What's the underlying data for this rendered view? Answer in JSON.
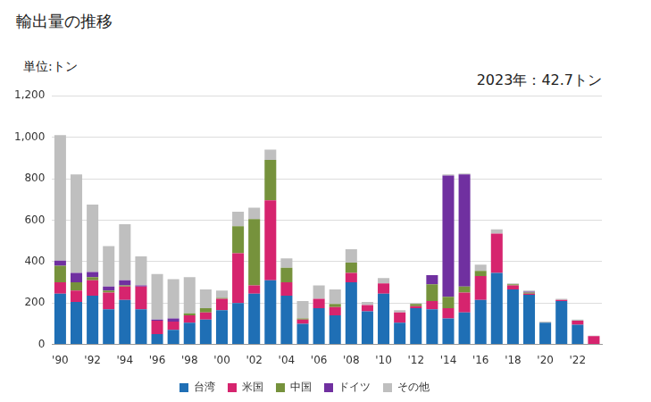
{
  "chart_data": {
    "type": "bar",
    "title": "輸出量の推移",
    "y_label": "単位:トン",
    "annotation": "2023年：42.7トン",
    "categories": [
      "'90",
      null,
      "'92",
      null,
      "'94",
      null,
      "'96",
      null,
      "'98",
      null,
      "'00",
      null,
      "'02",
      null,
      "'04",
      null,
      "'06",
      null,
      "'08",
      null,
      "'10",
      null,
      "'12",
      null,
      "'14",
      null,
      "'16",
      null,
      "'18",
      null,
      "'20",
      null,
      "'22",
      null
    ],
    "series": [
      {
        "name": "台湾",
        "color": "#1f6fb5",
        "values": [
          245,
          205,
          235,
          170,
          215,
          170,
          50,
          70,
          105,
          120,
          165,
          200,
          245,
          310,
          235,
          100,
          175,
          140,
          300,
          160,
          245,
          105,
          175,
          170,
          125,
          155,
          215,
          345,
          265,
          240,
          105,
          210,
          95,
          0
        ]
      },
      {
        "name": "米国",
        "color": "#d6246e",
        "values": [
          55,
          55,
          75,
          80,
          65,
          110,
          65,
          40,
          35,
          35,
          55,
          240,
          40,
          385,
          65,
          20,
          45,
          40,
          45,
          30,
          50,
          50,
          10,
          40,
          50,
          95,
          115,
          190,
          20,
          5,
          0,
          5,
          20,
          40
        ]
      },
      {
        "name": "中国",
        "color": "#76923c",
        "values": [
          80,
          40,
          15,
          10,
          5,
          0,
          0,
          0,
          10,
          20,
          5,
          130,
          320,
          195,
          70,
          5,
          0,
          15,
          50,
          0,
          0,
          0,
          10,
          80,
          55,
          30,
          25,
          0,
          5,
          5,
          0,
          0,
          0,
          0
        ]
      },
      {
        "name": "ドイツ",
        "color": "#7030a0",
        "values": [
          25,
          45,
          25,
          20,
          25,
          5,
          5,
          15,
          0,
          0,
          0,
          0,
          0,
          0,
          0,
          0,
          0,
          0,
          0,
          0,
          0,
          0,
          0,
          45,
          585,
          540,
          0,
          0,
          0,
          5,
          0,
          0,
          0,
          0
        ]
      },
      {
        "name": "その他",
        "color": "#bfbfbf",
        "values": [
          605,
          475,
          325,
          195,
          270,
          140,
          220,
          190,
          175,
          90,
          35,
          70,
          55,
          50,
          45,
          85,
          65,
          70,
          65,
          15,
          25,
          10,
          5,
          0,
          5,
          5,
          30,
          20,
          5,
          5,
          5,
          5,
          5,
          2.7
        ]
      }
    ],
    "ylim": [
      0,
      1200
    ],
    "yticks": [
      0,
      200,
      400,
      600,
      800,
      {
        "value": 1000,
        "label": "1,000"
      },
      {
        "value": 1200,
        "label": "1,200"
      }
    ],
    "stacked": true,
    "grid": true,
    "legend": "bottom"
  }
}
